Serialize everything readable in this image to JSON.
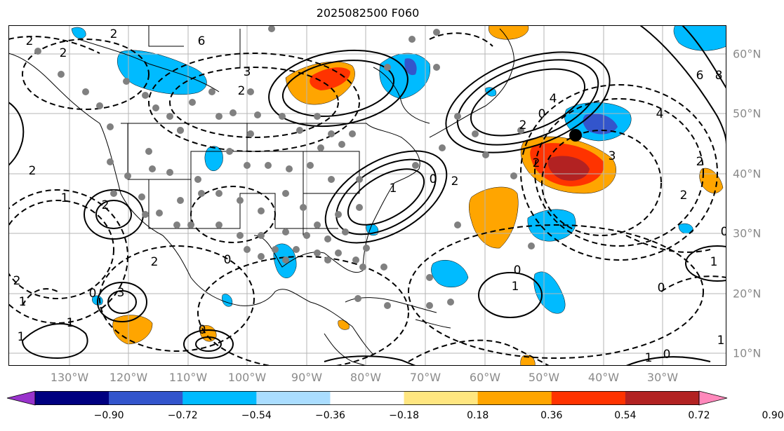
{
  "title": "2025082500 F060",
  "lon_labels": [
    "130°W",
    "120°W",
    "110°W",
    "100°W",
    "90°W",
    "80°W",
    "70°W",
    "60°W",
    "50°W",
    "40°W",
    "30°W"
  ],
  "lat_labels": [
    "60°N",
    "50°N",
    "40°N",
    "30°N",
    "20°N",
    "10°N"
  ],
  "colorbar": {
    "ticks": [
      "−0.90",
      "−0.72",
      "−0.54",
      "−0.36",
      "−0.18",
      "0.18",
      "0.36",
      "0.54",
      "0.72",
      "0.90"
    ],
    "colors": [
      "#9933cc",
      "#000080",
      "#3355cc",
      "#00bbff",
      "#aaddff",
      "#ffffff",
      "#ffe680",
      "#ffa500",
      "#ff3300",
      "#b22222",
      "#ff88bb"
    ]
  },
  "contour_labels": [
    "2",
    "2",
    "2",
    "6",
    "3",
    "2",
    "4",
    "0",
    "2",
    "6",
    "8",
    "4",
    "2",
    "3",
    "2",
    "2",
    "0",
    "2",
    "2",
    "1",
    "2",
    "3",
    "0",
    "1",
    "2",
    "1",
    "0",
    "0",
    "0",
    "1",
    "0",
    "1",
    "2",
    "1",
    "0",
    "1",
    "1",
    "0",
    "1"
  ],
  "colors": {
    "gray_label": "#8a8a8a",
    "station_dot": "#808080"
  }
}
